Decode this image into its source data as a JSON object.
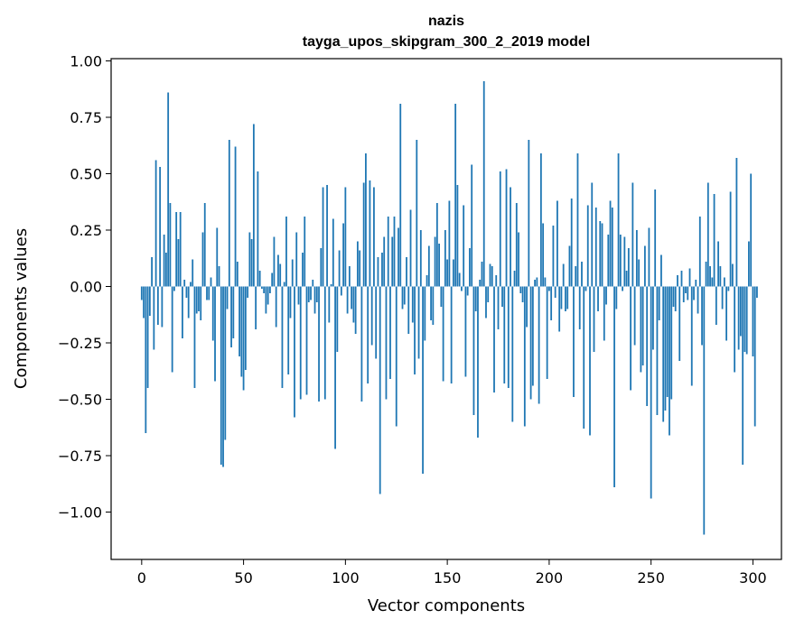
{
  "chart_data": {
    "type": "bar",
    "title": "nazis",
    "subtitle": "tayga_upos_skipgram_300_2_2019 model",
    "xlabel": "Vector components",
    "ylabel": "Components values",
    "xlim": [
      -15,
      314
    ],
    "ylim": [
      -1.21,
      1.01
    ],
    "xticks": [
      0,
      50,
      100,
      150,
      200,
      250,
      300
    ],
    "xtick_labels": [
      "0",
      "50",
      "100",
      "150",
      "200",
      "250",
      "300"
    ],
    "yticks": [
      1.0,
      0.75,
      0.5,
      0.25,
      0.0,
      -0.25,
      -0.5,
      -0.75,
      -1.0
    ],
    "ytick_labels": [
      "1.00",
      "0.75",
      "0.50",
      "0.25",
      "0.00",
      "−0.25",
      "−0.50",
      "−0.75",
      "−1.00"
    ],
    "grid": false,
    "bar_color": "#1f77b4",
    "values": [
      -0.06,
      -0.14,
      -0.65,
      -0.45,
      -0.13,
      0.13,
      -0.28,
      0.56,
      -0.17,
      0.53,
      -0.18,
      0.23,
      0.15,
      0.86,
      0.37,
      -0.38,
      -0.02,
      0.33,
      0.21,
      0.33,
      -0.23,
      0.03,
      -0.05,
      -0.14,
      0.02,
      0.12,
      -0.45,
      -0.12,
      -0.11,
      -0.15,
      0.24,
      0.37,
      -0.06,
      -0.06,
      0.04,
      -0.24,
      -0.42,
      0.26,
      0.09,
      -0.79,
      -0.8,
      -0.68,
      -0.1,
      0.65,
      -0.27,
      -0.23,
      0.62,
      0.11,
      -0.31,
      -0.4,
      -0.46,
      -0.37,
      -0.05,
      0.24,
      0.21,
      0.72,
      -0.19,
      0.51,
      0.07,
      -0.01,
      -0.03,
      -0.12,
      -0.08,
      -0.03,
      0.06,
      0.22,
      -0.18,
      0.14,
      0.1,
      -0.45,
      0.02,
      0.31,
      -0.39,
      -0.14,
      0.12,
      -0.58,
      0.24,
      -0.08,
      -0.5,
      0.15,
      0.31,
      -0.48,
      -0.07,
      -0.06,
      0.03,
      -0.12,
      -0.07,
      -0.51,
      0.17,
      0.44,
      -0.5,
      0.45,
      -0.16,
      0.01,
      0.3,
      -0.72,
      -0.29,
      0.16,
      -0.04,
      0.28,
      0.44,
      -0.12,
      0.09,
      -0.1,
      -0.16,
      -0.21,
      0.2,
      0.16,
      -0.51,
      0.46,
      0.59,
      -0.43,
      0.47,
      -0.26,
      0.44,
      -0.32,
      0.13,
      -0.92,
      0.15,
      0.22,
      -0.5,
      0.31,
      -0.41,
      0.22,
      0.31,
      -0.62,
      0.26,
      0.81,
      -0.1,
      -0.08,
      0.13,
      -0.21,
      0.34,
      -0.16,
      -0.39,
      0.65,
      -0.32,
      0.25,
      -0.83,
      -0.24,
      0.05,
      0.18,
      -0.15,
      -0.17,
      0.22,
      0.37,
      0.19,
      -0.09,
      -0.42,
      0.25,
      0.12,
      0.38,
      -0.43,
      0.12,
      0.81,
      0.45,
      0.06,
      -0.02,
      0.36,
      -0.4,
      -0.04,
      0.17,
      0.54,
      -0.57,
      -0.11,
      -0.67,
      0.03,
      0.11,
      0.91,
      -0.14,
      -0.07,
      0.1,
      0.09,
      -0.47,
      0.05,
      -0.19,
      0.51,
      -0.09,
      -0.43,
      0.52,
      -0.45,
      0.44,
      -0.6,
      0.07,
      0.37,
      0.24,
      -0.03,
      -0.07,
      -0.62,
      -0.18,
      0.65,
      -0.5,
      -0.44,
      0.03,
      0.04,
      -0.52,
      0.59,
      0.28,
      0.04,
      -0.41,
      -0.02,
      -0.15,
      0.27,
      -0.05,
      0.38,
      -0.2,
      -0.1,
      0.1,
      -0.11,
      -0.1,
      0.18,
      0.39,
      -0.49,
      0.09,
      0.59,
      -0.19,
      0.11,
      -0.63,
      -0.02,
      0.36,
      -0.66,
      0.46,
      -0.29,
      0.35,
      -0.11,
      0.29,
      0.28,
      -0.24,
      -0.08,
      0.23,
      0.38,
      0.35,
      -0.89,
      -0.1,
      0.59,
      0.23,
      -0.02,
      0.22,
      0.07,
      0.17,
      -0.46,
      0.46,
      -0.26,
      0.25,
      0.12,
      -0.38,
      -0.35,
      0.18,
      -0.53,
      0.26,
      -0.94,
      -0.28,
      0.43,
      -0.57,
      -0.15,
      0.14,
      -0.6,
      -0.55,
      -0.49,
      -0.66,
      -0.5,
      -0.09,
      -0.11,
      0.05,
      -0.33,
      0.07,
      -0.07,
      -0.03,
      -0.06,
      0.08,
      -0.44,
      -0.06,
      0.03,
      -0.12,
      0.31,
      -0.26,
      -1.1,
      0.11,
      0.46,
      0.09,
      0.04,
      0.41,
      -0.17,
      0.2,
      0.09,
      -0.1,
      0.04,
      -0.24,
      -0.02,
      0.42,
      0.1,
      -0.38,
      0.57,
      -0.28,
      -0.22,
      -0.79,
      -0.29,
      -0.3,
      0.2,
      0.5,
      -0.31,
      -0.62,
      -0.05
    ]
  }
}
